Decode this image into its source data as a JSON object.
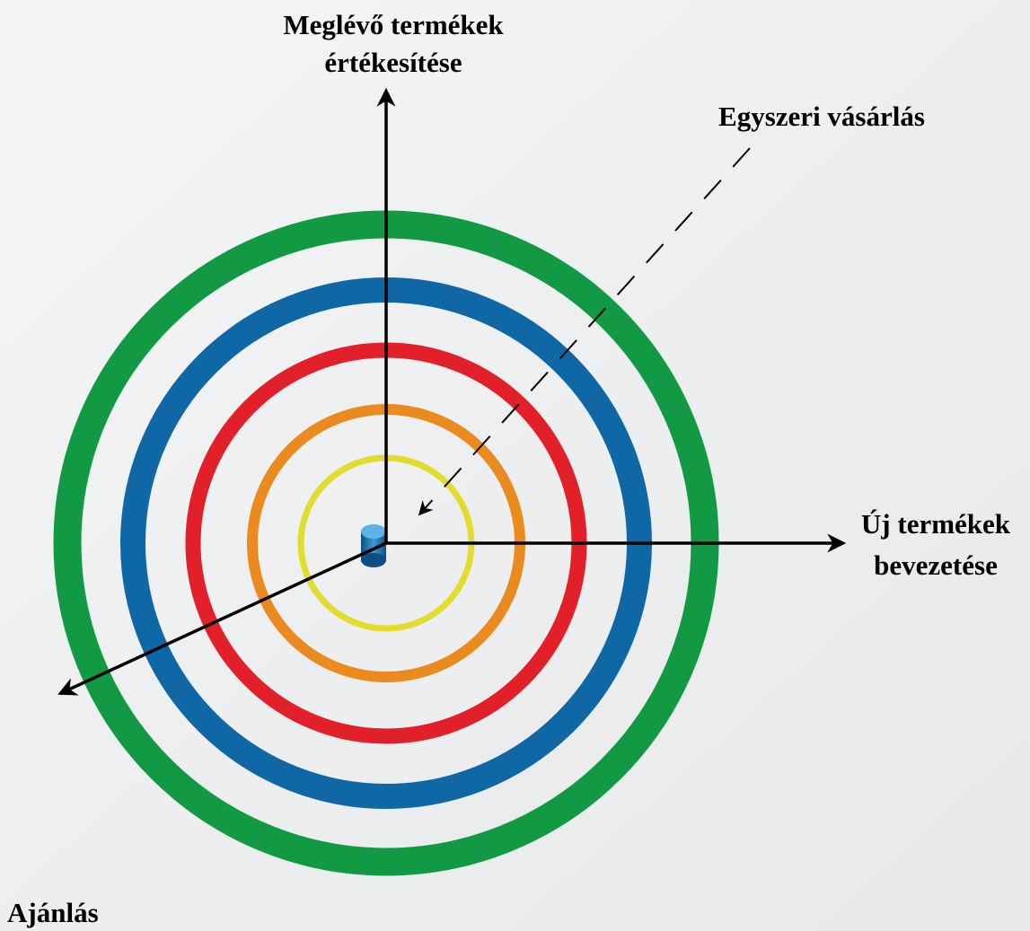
{
  "labels": {
    "top": [
      "Meglévő termékek",
      "értékesítése"
    ],
    "diagonal": "Egyszeri vásárlás",
    "right": [
      "Új termékek",
      "bevezetése"
    ],
    "bottom_left": "Ajánlás"
  }
}
